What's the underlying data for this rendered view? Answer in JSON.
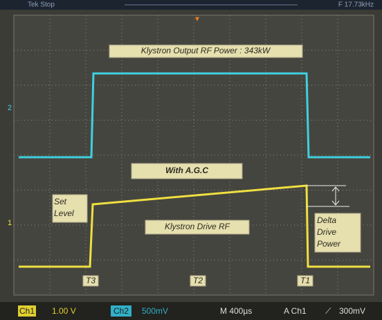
{
  "header": {
    "left": "Tek Stop",
    "right": "F 17.73kHz"
  },
  "screen": {
    "channel2_marker": "2",
    "channel1_marker": "1",
    "annotations": {
      "title": "Klystron Output RF Power : 343kW",
      "agc": "With  A.G.C",
      "set_level": "Set Level",
      "drive": "Klystron Drive RF",
      "delta": "Delta Drive Power",
      "t3": "T3",
      "t2": "T2",
      "t1": "T1"
    }
  },
  "footer": {
    "ch1": "Ch1",
    "ch1_scale": "1.00 V",
    "ch2": "Ch2",
    "ch2_scale": "500mV",
    "time": "M 400µs",
    "trigger": "A  Ch1",
    "trigger_level": "300mV"
  }
}
